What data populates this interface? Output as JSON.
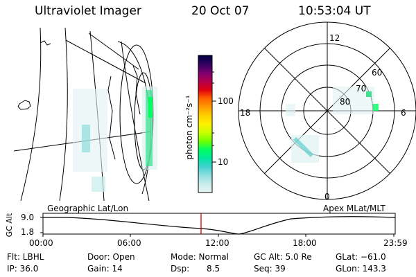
{
  "header": {
    "title": "Ultraviolet Imager",
    "date": "20 Oct 07",
    "time": "10:53:04 UT"
  },
  "colorbar": {
    "unit_label": "photon cm⁻²s⁻¹",
    "ticks": [
      "100",
      "10"
    ],
    "colors": [
      "#000040",
      "#300060",
      "#7a0070",
      "#b00050",
      "#e00010",
      "#ff6000",
      "#ff9a00",
      "#ffd000",
      "#fff000",
      "#c8ff00",
      "#70ff00",
      "#00ff60",
      "#00e8a0",
      "#40d0d0",
      "#90e0e0",
      "#c8ecec",
      "#e6f4f4"
    ]
  },
  "polar": {
    "mlt_labels": {
      "top": "12",
      "right": "6",
      "bottom": "0",
      "left": "18"
    },
    "lat_labels": [
      "60",
      "70",
      "80"
    ]
  },
  "strip": {
    "left_caption": "Geographic Lat/Lon",
    "right_caption": "Apex MLat/MLT",
    "y_axis_label": "GC Alt",
    "y_ticks": [
      "9.0",
      "1.8"
    ],
    "x_ticks": [
      "00:00",
      "06:00",
      "12:00",
      "18:00",
      "23:59"
    ],
    "marker_color": "#cc0000"
  },
  "info": {
    "flt": "Flt: LBHL",
    "ip": "IP: 36.0",
    "door": "Door: Open",
    "gain": "Gain: 14",
    "mode": "Mode: Normal",
    "dsp_label": "Dsp:",
    "dsp_value": "8.5",
    "gcalt": "GC Alt: 5.0 Re",
    "seq": "Seq: 39",
    "glat": "GLat: −61.0",
    "glon": "GLon: 143.3"
  }
}
